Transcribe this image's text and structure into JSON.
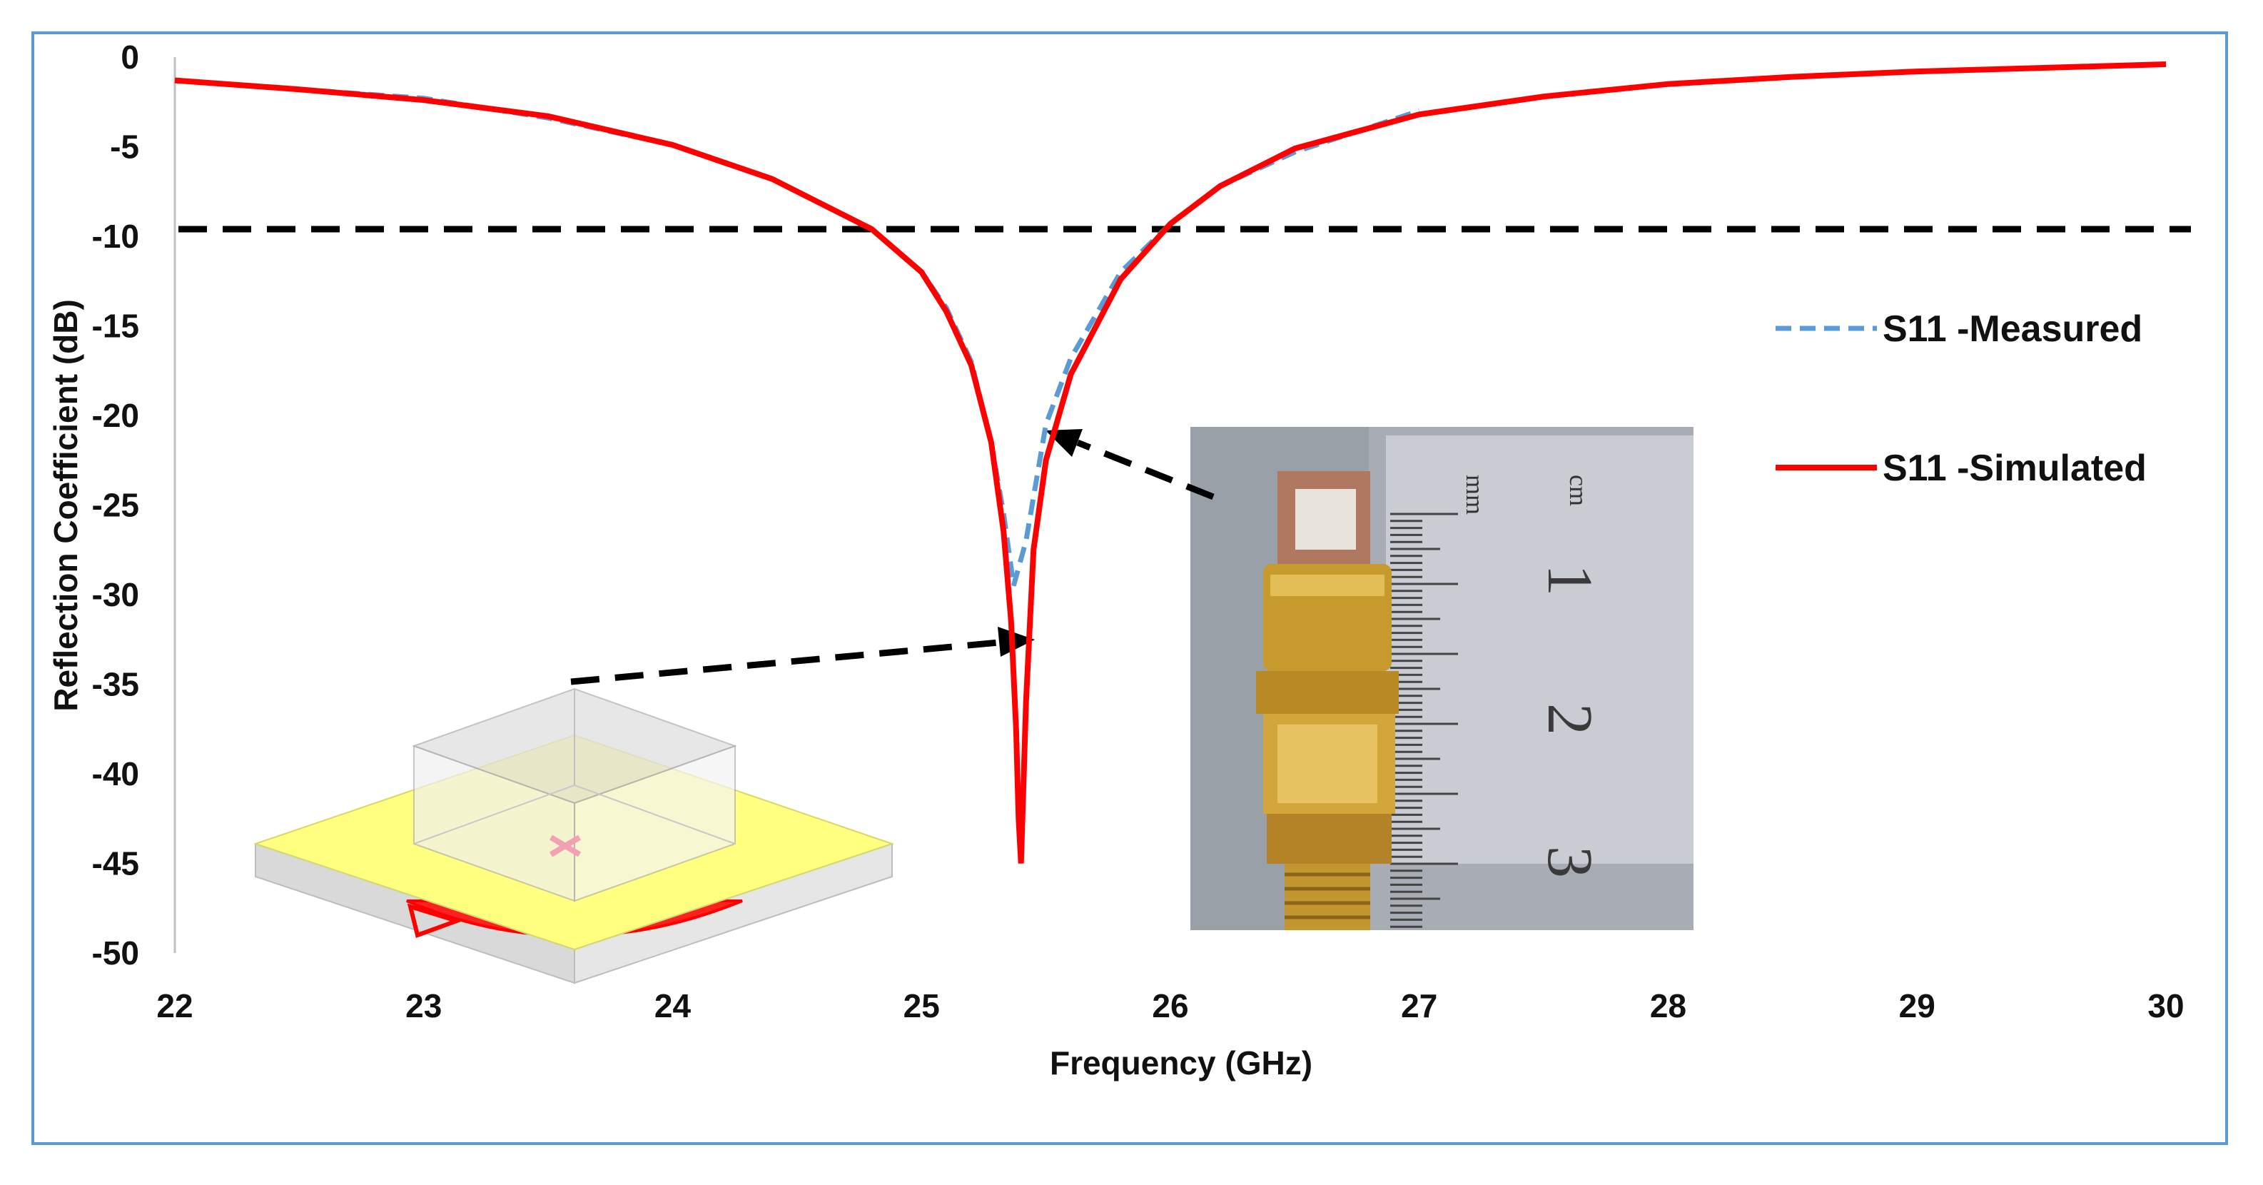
{
  "chart_data": {
    "type": "line",
    "title": "",
    "xlabel": "Frequency (GHz)",
    "ylabel": "Reflection Coefficient (dB)",
    "xlim": [
      22,
      30
    ],
    "ylim": [
      -50,
      0
    ],
    "xticks": [
      22,
      23,
      24,
      25,
      26,
      27,
      28,
      29,
      30
    ],
    "yticks": [
      0,
      -5,
      -10,
      -15,
      -20,
      -25,
      -30,
      -35,
      -40,
      -45,
      -50
    ],
    "grid": false,
    "legend_position": "right",
    "threshold": {
      "value": -9.6,
      "color": "#000000",
      "style": "dashed"
    },
    "series": [
      {
        "name": "S11 -Measured",
        "color": "#5b9bd5",
        "style": "dashed",
        "x": [
          22.0,
          22.5,
          23.0,
          23.5,
          24.0,
          24.4,
          24.8,
          25.0,
          25.1,
          25.2,
          25.28,
          25.33,
          25.37,
          25.42,
          25.5,
          25.6,
          25.8,
          26.0,
          26.2,
          26.5,
          27.0
        ],
        "y": [
          -1.3,
          -1.8,
          -2.3,
          -3.4,
          -4.9,
          -6.8,
          -9.6,
          -12.0,
          -14.0,
          -17.0,
          -21.5,
          -25.5,
          -29.5,
          -27.0,
          -20.5,
          -16.8,
          -12.0,
          -9.3,
          -7.2,
          -5.3,
          -3.0
        ]
      },
      {
        "name": "S11 -Simulated",
        "color": "#ff0000",
        "style": "solid",
        "x": [
          22.0,
          22.5,
          23.0,
          23.5,
          24.0,
          24.4,
          24.8,
          25.0,
          25.1,
          25.2,
          25.28,
          25.33,
          25.36,
          25.38,
          25.39,
          25.4,
          25.42,
          25.45,
          25.5,
          25.6,
          25.8,
          26.0,
          26.2,
          26.5,
          27.0,
          27.5,
          28.0,
          28.5,
          29.0,
          29.5,
          30.0
        ],
        "y": [
          -1.3,
          -1.8,
          -2.4,
          -3.3,
          -4.9,
          -6.8,
          -9.6,
          -12.0,
          -14.2,
          -17.2,
          -21.5,
          -26.5,
          -31.5,
          -37.5,
          -42.5,
          -45.0,
          -36.0,
          -27.5,
          -22.5,
          -17.7,
          -12.4,
          -9.3,
          -7.2,
          -5.1,
          -3.2,
          -2.2,
          -1.5,
          -1.1,
          -0.8,
          -0.6,
          -0.4
        ]
      }
    ]
  },
  "insets": {
    "antenna_model_icon": "antenna-3d-model",
    "prototype_photo_icon": "fabricated-prototype-photo",
    "ruler_marks": [
      "mm",
      "cm",
      "1",
      "2",
      "3"
    ]
  }
}
